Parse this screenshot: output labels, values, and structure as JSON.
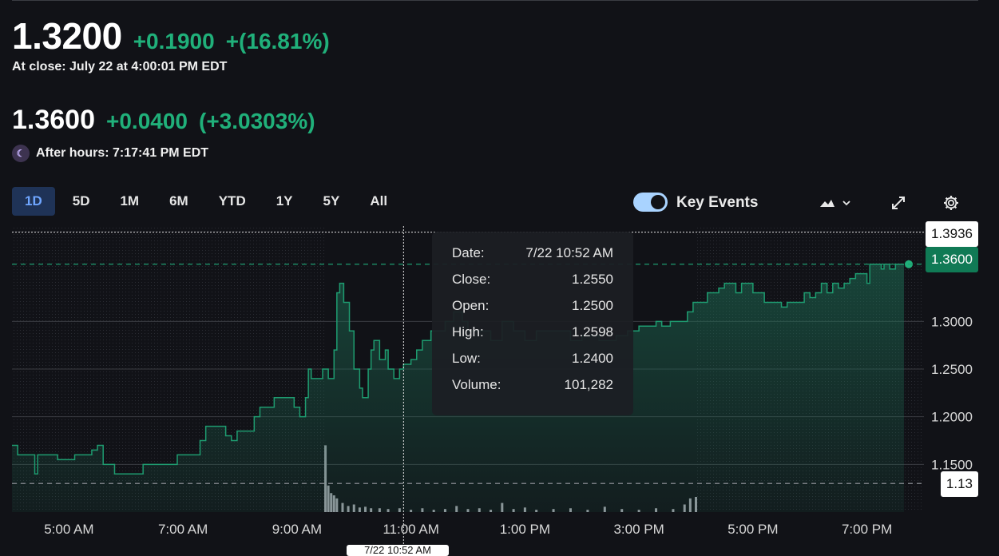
{
  "quote": {
    "price": "1.3200",
    "change": "+0.1900",
    "change_pct": "+(16.81%)",
    "close_label": "At close: July 22 at 4:00:01 PM EDT"
  },
  "after_hours": {
    "price": "1.3600",
    "change": "+0.0400",
    "change_pct": "(+3.0303%)",
    "label": "After hours: 7:17:41 PM EDT"
  },
  "ranges": [
    "1D",
    "5D",
    "1M",
    "6M",
    "YTD",
    "1Y",
    "5Y",
    "All"
  ],
  "active_range": "1D",
  "key_events": {
    "label": "Key Events",
    "enabled": true
  },
  "icons": {
    "chart_type": "mountain-chart-icon",
    "dropdown": "chevron-down-icon",
    "expand": "expand-icon",
    "settings": "gear-icon"
  },
  "colors": {
    "up": "#20b07a",
    "background": "#111217",
    "accent": "#6fa6ff",
    "current_tag": "#107a55"
  },
  "tooltip": {
    "rows": [
      {
        "label": "Date:",
        "value": "7/22 10:52 AM"
      },
      {
        "label": "Close:",
        "value": "1.2550"
      },
      {
        "label": "Open:",
        "value": "1.2500"
      },
      {
        "label": "High:",
        "value": "1.2598"
      },
      {
        "label": "Low:",
        "value": "1.2400"
      },
      {
        "label": "Volume:",
        "value": "101,282"
      }
    ]
  },
  "tags": {
    "high": "1.3936",
    "current": "1.3600",
    "low": "1.13"
  },
  "crosshair_label": "7/22 10:52 AM",
  "chart_data": {
    "type": "area",
    "x_ticks": [
      "5:00 AM",
      "7:00 AM",
      "9:00 AM",
      "11:00 AM",
      "1:00 PM",
      "3:00 PM",
      "5:00 PM",
      "7:00 PM"
    ],
    "y_ticks": [
      "1.1500",
      "1.2000",
      "1.2500",
      "1.3000"
    ],
    "ylim": [
      1.1,
      1.4
    ],
    "xlim_hours": [
      4.0,
      20.0
    ],
    "regular_session": [
      9.5,
      16.0
    ],
    "previous_close": 1.13,
    "current": 1.36,
    "high_marker": 1.3936,
    "crosshair_x": 10.87,
    "price": [
      [
        4.0,
        1.17
      ],
      [
        4.1,
        1.16
      ],
      [
        4.35,
        1.16
      ],
      [
        4.4,
        1.14
      ],
      [
        4.45,
        1.16
      ],
      [
        4.8,
        1.155
      ],
      [
        5.1,
        1.16
      ],
      [
        5.4,
        1.165
      ],
      [
        5.5,
        1.17
      ],
      [
        5.6,
        1.15
      ],
      [
        5.8,
        1.14
      ],
      [
        6.0,
        1.14
      ],
      [
        6.2,
        1.14
      ],
      [
        6.3,
        1.15
      ],
      [
        6.6,
        1.15
      ],
      [
        6.8,
        1.15
      ],
      [
        6.9,
        1.16
      ],
      [
        7.1,
        1.16
      ],
      [
        7.3,
        1.175
      ],
      [
        7.4,
        1.19
      ],
      [
        7.6,
        1.19
      ],
      [
        7.75,
        1.18
      ],
      [
        7.85,
        1.175
      ],
      [
        7.95,
        1.185
      ],
      [
        8.15,
        1.185
      ],
      [
        8.25,
        1.2
      ],
      [
        8.35,
        1.21
      ],
      [
        8.5,
        1.21
      ],
      [
        8.6,
        1.22
      ],
      [
        8.9,
        1.22
      ],
      [
        8.95,
        1.21
      ],
      [
        9.05,
        1.2
      ],
      [
        9.15,
        1.22
      ],
      [
        9.2,
        1.25
      ],
      [
        9.25,
        1.24
      ],
      [
        9.35,
        1.24
      ],
      [
        9.45,
        1.25
      ],
      [
        9.55,
        1.24
      ],
      [
        9.65,
        1.27
      ],
      [
        9.7,
        1.33
      ],
      [
        9.75,
        1.34
      ],
      [
        9.82,
        1.32
      ],
      [
        9.92,
        1.29
      ],
      [
        10.0,
        1.25
      ],
      [
        10.1,
        1.23
      ],
      [
        10.15,
        1.22
      ],
      [
        10.25,
        1.25
      ],
      [
        10.3,
        1.27
      ],
      [
        10.35,
        1.28
      ],
      [
        10.45,
        1.26
      ],
      [
        10.55,
        1.27
      ],
      [
        10.6,
        1.25
      ],
      [
        10.7,
        1.24
      ],
      [
        10.8,
        1.25
      ],
      [
        10.87,
        1.255
      ],
      [
        11.0,
        1.26
      ],
      [
        11.1,
        1.27
      ],
      [
        11.2,
        1.28
      ],
      [
        11.35,
        1.29
      ],
      [
        11.5,
        1.29
      ],
      [
        11.6,
        1.3
      ],
      [
        11.75,
        1.31
      ],
      [
        11.9,
        1.3
      ],
      [
        12.0,
        1.29
      ],
      [
        12.2,
        1.29
      ],
      [
        12.4,
        1.28
      ],
      [
        12.6,
        1.3
      ],
      [
        12.8,
        1.29
      ],
      [
        13.0,
        1.28
      ],
      [
        13.2,
        1.29
      ],
      [
        13.5,
        1.29
      ],
      [
        13.8,
        1.28
      ],
      [
        14.0,
        1.285
      ],
      [
        14.3,
        1.28
      ],
      [
        14.6,
        1.285
      ],
      [
        14.8,
        1.29
      ],
      [
        15.0,
        1.295
      ],
      [
        15.2,
        1.295
      ],
      [
        15.3,
        1.3
      ],
      [
        15.4,
        1.295
      ],
      [
        15.55,
        1.3
      ],
      [
        15.75,
        1.3
      ],
      [
        15.85,
        1.31
      ],
      [
        15.95,
        1.32
      ],
      [
        16.0,
        1.32
      ],
      [
        16.2,
        1.33
      ],
      [
        16.4,
        1.335
      ],
      [
        16.5,
        1.34
      ],
      [
        16.7,
        1.33
      ],
      [
        16.8,
        1.34
      ],
      [
        17.0,
        1.33
      ],
      [
        17.2,
        1.32
      ],
      [
        17.4,
        1.32
      ],
      [
        17.5,
        1.315
      ],
      [
        17.6,
        1.32
      ],
      [
        17.8,
        1.32
      ],
      [
        17.9,
        1.33
      ],
      [
        18.0,
        1.325
      ],
      [
        18.1,
        1.33
      ],
      [
        18.2,
        1.34
      ],
      [
        18.3,
        1.33
      ],
      [
        18.4,
        1.34
      ],
      [
        18.5,
        1.335
      ],
      [
        18.6,
        1.34
      ],
      [
        18.7,
        1.345
      ],
      [
        18.8,
        1.35
      ],
      [
        18.9,
        1.35
      ],
      [
        19.0,
        1.34
      ],
      [
        19.05,
        1.36
      ],
      [
        19.15,
        1.36
      ],
      [
        19.25,
        1.355
      ],
      [
        19.3,
        1.36
      ],
      [
        19.4,
        1.355
      ],
      [
        19.5,
        1.36
      ],
      [
        19.6,
        1.36
      ],
      [
        19.65,
        1.36
      ]
    ],
    "volume_relative": [
      [
        9.5,
        0.88
      ],
      [
        9.55,
        0.35
      ],
      [
        9.6,
        0.25
      ],
      [
        9.65,
        0.22
      ],
      [
        9.7,
        0.18
      ],
      [
        9.8,
        0.12
      ],
      [
        9.9,
        0.08
      ],
      [
        10.0,
        0.1
      ],
      [
        10.1,
        0.06
      ],
      [
        10.2,
        0.07
      ],
      [
        10.3,
        0.05
      ],
      [
        10.45,
        0.05
      ],
      [
        10.6,
        0.04
      ],
      [
        10.8,
        0.05
      ],
      [
        11.0,
        0.03
      ],
      [
        11.2,
        0.05
      ],
      [
        11.4,
        0.03
      ],
      [
        11.6,
        0.04
      ],
      [
        11.8,
        0.08
      ],
      [
        12.0,
        0.04
      ],
      [
        12.2,
        0.05
      ],
      [
        12.4,
        0.03
      ],
      [
        12.6,
        0.12
      ],
      [
        12.8,
        0.04
      ],
      [
        13.0,
        0.06
      ],
      [
        13.2,
        0.03
      ],
      [
        13.5,
        0.04
      ],
      [
        13.8,
        0.05
      ],
      [
        14.1,
        0.03
      ],
      [
        14.4,
        0.07
      ],
      [
        14.7,
        0.04
      ],
      [
        15.0,
        0.03
      ],
      [
        15.3,
        0.05
      ],
      [
        15.6,
        0.04
      ],
      [
        15.8,
        0.1
      ],
      [
        15.9,
        0.18
      ],
      [
        16.0,
        0.2
      ]
    ]
  }
}
